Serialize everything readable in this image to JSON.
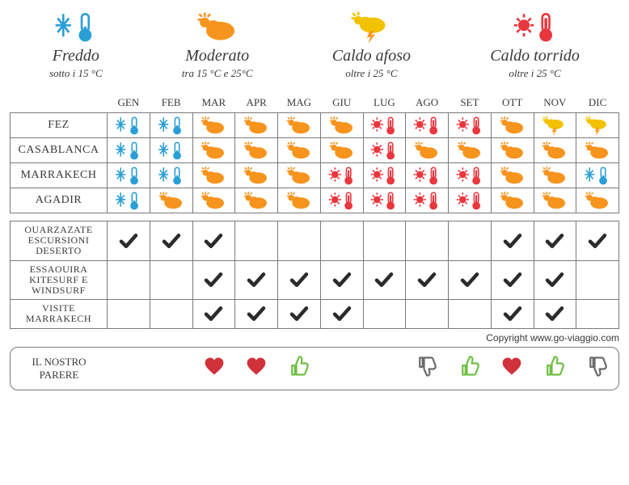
{
  "colors": {
    "cold": "#2a9fd6",
    "moderate": "#f7941d",
    "humid_cloud": "#f2c200",
    "humid_bolt": "#f7941d",
    "hot": "#e8373e",
    "check": "#2b2b2b",
    "heart": "#d0323a",
    "thumb_up": "#6fbf44",
    "thumb_down": "#6a6a6a",
    "text": "#3a3a3a",
    "border": "#7a7a7a"
  },
  "legend": [
    {
      "icon": "cold",
      "title": "Freddo",
      "sub": "sotto i 15 °C"
    },
    {
      "icon": "moderate",
      "title": "Moderato",
      "sub": "tra 15 °C e 25°C"
    },
    {
      "icon": "humid",
      "title": "Caldo afoso",
      "sub": "oltre i 25 °C"
    },
    {
      "icon": "hot",
      "title": "Caldo torrido",
      "sub": "oltre i 25 °C"
    }
  ],
  "months": [
    "GEN",
    "FEB",
    "MAR",
    "APR",
    "MAG",
    "GIU",
    "LUG",
    "AGO",
    "SET",
    "OTT",
    "NOV",
    "DIC"
  ],
  "climate_rows": [
    {
      "label": "FEZ",
      "cells": [
        "cold",
        "cold",
        "moderate",
        "moderate",
        "moderate",
        "moderate",
        "hot",
        "hot",
        "hot",
        "moderate",
        "humid",
        "humid"
      ]
    },
    {
      "label": "CASABLANCA",
      "cells": [
        "cold",
        "cold",
        "moderate",
        "moderate",
        "moderate",
        "moderate",
        "hot",
        "moderate",
        "moderate",
        "moderate",
        "moderate",
        "moderate"
      ]
    },
    {
      "label": "MARRAKECH",
      "cells": [
        "cold",
        "cold",
        "moderate",
        "moderate",
        "moderate",
        "hot",
        "hot",
        "hot",
        "hot",
        "moderate",
        "moderate",
        "cold"
      ]
    },
    {
      "label": "AGADIR",
      "cells": [
        "cold",
        "moderate",
        "moderate",
        "moderate",
        "moderate",
        "hot",
        "hot",
        "hot",
        "hot",
        "moderate",
        "moderate",
        "moderate"
      ]
    }
  ],
  "activity_rows": [
    {
      "label": "OUARZAZATE ESCURSIONI DESERTO",
      "checks": [
        true,
        true,
        true,
        false,
        false,
        false,
        false,
        false,
        false,
        true,
        true,
        true
      ]
    },
    {
      "label": "ESSAOUIRA KITESURF E WINDSURF",
      "checks": [
        false,
        false,
        true,
        true,
        true,
        true,
        true,
        true,
        true,
        true,
        true,
        false
      ]
    },
    {
      "label": "VISITE MARRAKECH",
      "checks": [
        false,
        false,
        true,
        true,
        true,
        true,
        false,
        false,
        false,
        true,
        true,
        false
      ]
    }
  ],
  "opinion": {
    "label": "IL NOSTRO PARERE",
    "cells": [
      "",
      "",
      "heart",
      "heart",
      "up",
      "",
      "",
      "down",
      "up",
      "heart",
      "up",
      "down"
    ]
  },
  "copyright": "Copyright www.go-viaggio.com"
}
